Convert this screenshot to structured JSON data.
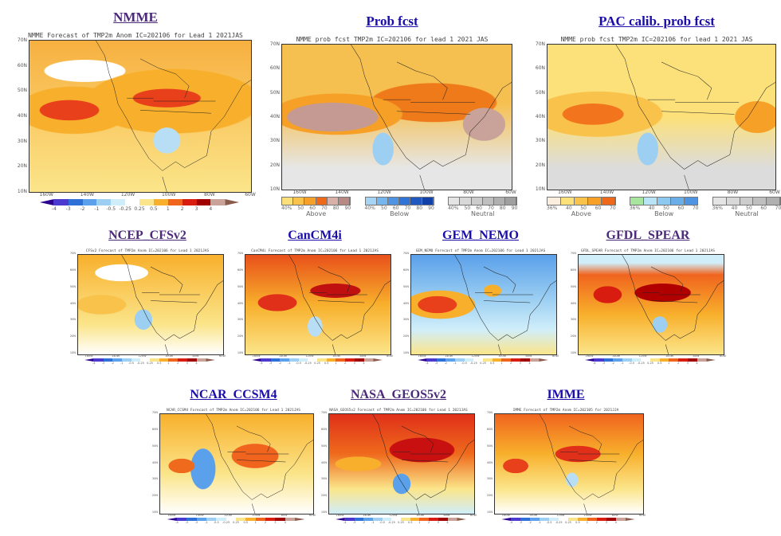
{
  "panels": [
    {
      "link": "NMME",
      "caption": "NMME Forecast of TMP2m Anom IC=202106 for Lead 1 2021JAS",
      "kind": "anom",
      "visited": true,
      "size": "big",
      "theme": "nmme"
    },
    {
      "link": "Prob fcst",
      "caption": "NMME prob fcst TMP2m IC=202106 for lead 1 2021 JAS",
      "kind": "prob",
      "visited": false,
      "size": "big",
      "theme": "prob"
    },
    {
      "link": "PAC calib. prob fcst",
      "caption": "NMME prob fcst TMP2m IC=202106 for lead 1 2021 JAS",
      "kind": "pac",
      "visited": false,
      "size": "big",
      "theme": "pac"
    },
    {
      "link": "NCEP_CFSv2",
      "caption": "CFSv2 Forecast of TMP2m Anom IC=202106 for Lead 1 2021JAS",
      "kind": "anom",
      "visited": true,
      "size": "small",
      "theme": "cfs"
    },
    {
      "link": "CanCM4i",
      "caption": "CanCM4i Forecast of TMP2m Anom IC=202106 for Lead 1 2021JAS",
      "kind": "anom",
      "visited": false,
      "size": "small",
      "theme": "can"
    },
    {
      "link": "GEM_NEMO",
      "caption": "GEM_NEMO Forecast of TMP2m Anom IC=202106 for Lead 1 2021JAS",
      "kind": "anom",
      "visited": false,
      "size": "small",
      "theme": "gem"
    },
    {
      "link": "GFDL_SPEAR",
      "caption": "GFDL_SPEAR Forecast of TMP2m Anom IC=202106 for Lead 1 2021JAS",
      "kind": "anom",
      "visited": true,
      "size": "small",
      "theme": "gfdl"
    },
    {
      "link": "NCAR_CCSM4",
      "caption": "NCAR_CCSM4 Forecast of TMP2m Anom IC=202106 for Lead 1 2021JAS",
      "kind": "anom",
      "visited": false,
      "size": "small",
      "theme": "ncar"
    },
    {
      "link": "NASA_GEOS5v2",
      "caption": "NASA_GEOS5v2 Forecast of TMP2m Anom IC=202106 for Lead 1 2021JAS",
      "kind": "anom",
      "visited": true,
      "size": "small",
      "theme": "nasa"
    },
    {
      "link": "IMME",
      "caption": "IMME Forecast of TMP2m Anom IC=202105 for 2021JJA",
      "kind": "anom",
      "visited": false,
      "size": "small",
      "theme": "imme"
    }
  ],
  "axes": {
    "lat": [
      "70N",
      "60N",
      "50N",
      "40N",
      "30N",
      "20N",
      "10N"
    ],
    "lon": [
      "160W",
      "140W",
      "120W",
      "100W",
      "80W",
      "60W"
    ]
  },
  "anom_colorbar": {
    "labels": [
      "-4",
      "-3",
      "-2",
      "-1",
      "-0.5",
      "-0.25",
      "0.25",
      "0.5",
      "1",
      "2",
      "3",
      "4"
    ],
    "colors": [
      "#2a0090",
      "#4a3ad0",
      "#2f6fd8",
      "#5aa0ea",
      "#9ccff2",
      "#d0eefa",
      "#ffffff",
      "#fbe58a",
      "#f8b02c",
      "#f0641e",
      "#d81c10",
      "#a00000",
      "#c9a29a",
      "#8a5a4a"
    ]
  },
  "prob_colorbar": {
    "groups": [
      {
        "name": "Above",
        "labels": [
          "40%",
          "50",
          "60",
          "70",
          "80",
          "90"
        ],
        "colors": [
          "#fbe07a",
          "#f9c24a",
          "#f6a027",
          "#ee6a1a",
          "#d8b0a8",
          "#b88a84"
        ]
      },
      {
        "name": "Below",
        "labels": [
          "40%",
          "50",
          "60",
          "70",
          "80",
          "90"
        ],
        "colors": [
          "#a6d4f4",
          "#76b6ee",
          "#4e94e2",
          "#2f74d6",
          "#1e58c0",
          "#1040a8"
        ]
      },
      {
        "name": "Neutral",
        "labels": [
          "40%",
          "50",
          "60",
          "70",
          "80",
          "90"
        ],
        "colors": [
          "#e4e4e4",
          "#d8d8d8",
          "#cccccc",
          "#bfbfbf",
          "#b0b0b0",
          "#a0a0a0"
        ]
      }
    ]
  },
  "pac_colorbar": {
    "groups": [
      {
        "name": "Above",
        "labels": [
          "36%",
          "40",
          "50",
          "60",
          "70"
        ],
        "colors": [
          "#fbeede",
          "#fce07a",
          "#f9c24a",
          "#f6a027",
          "#ee6a1a"
        ]
      },
      {
        "name": "Below",
        "labels": [
          "36%",
          "40",
          "50",
          "60",
          "70"
        ],
        "colors": [
          "#a8e6a0",
          "#b8e4f6",
          "#8cc8f0",
          "#6aaee8",
          "#4e94e2"
        ]
      },
      {
        "name": "Neutral",
        "labels": [
          "36%",
          "40",
          "50",
          "60",
          "70"
        ],
        "colors": [
          "#e4e4e4",
          "#d8d8d8",
          "#cccccc",
          "#bfbfbf",
          "#b0b0b0"
        ]
      }
    ]
  }
}
